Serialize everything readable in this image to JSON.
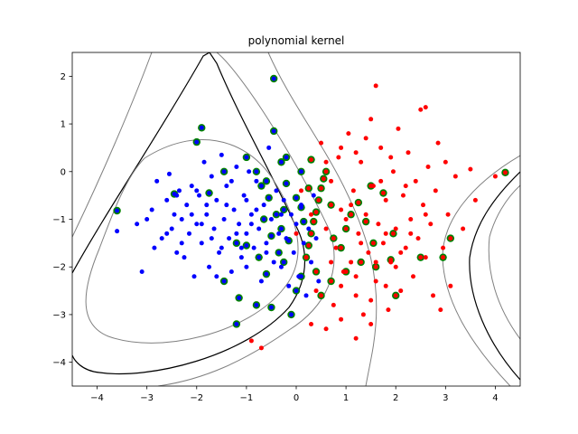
{
  "chart_data": {
    "type": "scatter",
    "title": "polynomial kernel",
    "xlabel": "",
    "ylabel": "",
    "xlim": [
      -4.5,
      4.5
    ],
    "ylim": [
      -4.5,
      2.5
    ],
    "xticks": [
      -4,
      -3,
      -2,
      -1,
      0,
      1,
      2,
      3,
      4
    ],
    "yticks": [
      -4,
      -3,
      -2,
      -1,
      0,
      1,
      2
    ],
    "grid": false,
    "colors": {
      "class_a": "#0000ff",
      "class_b": "#ff0000",
      "support_vector_ring": "#008000",
      "decision_boundary": "#000000",
      "margin": "#808080"
    },
    "series": [
      {
        "marker": "blue-dot",
        "color": "#0000ff",
        "points": [
          [
            -3.6,
            -1.25
          ],
          [
            -3.2,
            -1.1
          ],
          [
            -3.1,
            -2.1
          ],
          [
            -3.0,
            -1.0
          ],
          [
            -2.9,
            -0.8
          ],
          [
            -2.85,
            -1.6
          ],
          [
            -2.8,
            -0.2
          ],
          [
            -2.7,
            -1.4
          ],
          [
            -2.6,
            -0.6
          ],
          [
            -2.55,
            -0.05
          ],
          [
            -2.5,
            -1.2
          ],
          [
            -2.45,
            -0.9
          ],
          [
            -2.4,
            -1.7
          ],
          [
            -2.35,
            -0.4
          ],
          [
            -2.3,
            -1.0
          ],
          [
            -2.25,
            -1.8
          ],
          [
            -2.2,
            -0.7
          ],
          [
            -2.15,
            -1.3
          ],
          [
            -2.1,
            -0.3
          ],
          [
            -2.05,
            -2.2
          ],
          [
            -2.0,
            -1.1
          ],
          [
            -1.95,
            -0.5
          ],
          [
            -1.9,
            -1.5
          ],
          [
            -1.85,
            0.2
          ],
          [
            -1.8,
            -0.9
          ],
          [
            -1.75,
            -2.0
          ],
          [
            -1.7,
            -0.1
          ],
          [
            -1.65,
            -1.2
          ],
          [
            -1.6,
            -0.6
          ],
          [
            -1.55,
            -1.7
          ],
          [
            -1.5,
            0.35
          ],
          [
            -1.45,
            -1.0
          ],
          [
            -1.4,
            -0.3
          ],
          [
            -1.35,
            -1.4
          ],
          [
            -1.3,
            -2.1
          ],
          [
            -1.25,
            -0.8
          ],
          [
            -1.2,
            0.1
          ],
          [
            -1.15,
            -1.1
          ],
          [
            -1.1,
            -1.8
          ],
          [
            -1.05,
            -0.5
          ],
          [
            -1.0,
            -1.3
          ],
          [
            -0.95,
            0.0
          ],
          [
            -0.9,
            -0.9
          ],
          [
            -0.85,
            -1.6
          ],
          [
            -0.8,
            -0.2
          ],
          [
            -0.75,
            -1.2
          ],
          [
            -0.7,
            -2.3
          ],
          [
            -0.65,
            -0.7
          ],
          [
            -0.6,
            -1.5
          ],
          [
            -0.55,
            0.5
          ],
          [
            -0.5,
            -1.0
          ],
          [
            -0.45,
            -1.9
          ],
          [
            -0.4,
            -0.4
          ],
          [
            -0.35,
            -1.3
          ],
          [
            -0.3,
            -2.0
          ],
          [
            -0.25,
            -0.6
          ],
          [
            -0.2,
            -1.4
          ],
          [
            -0.15,
            -2.4
          ],
          [
            -0.1,
            -0.9
          ],
          [
            -0.05,
            -1.7
          ],
          [
            0.0,
            -1.1
          ],
          [
            0.05,
            -2.2
          ],
          [
            0.1,
            -0.7
          ],
          [
            0.15,
            -1.5
          ],
          [
            0.2,
            -2.6
          ],
          [
            0.25,
            -1.2
          ],
          [
            0.3,
            -1.9
          ],
          [
            0.35,
            -0.5
          ],
          [
            0.4,
            -1.4
          ],
          [
            0.45,
            -2.3
          ],
          [
            -2.3,
            -1.5
          ],
          [
            -2.0,
            -0.4
          ],
          [
            -1.7,
            -1.4
          ],
          [
            -1.4,
            -0.7
          ],
          [
            -1.1,
            -1.6
          ],
          [
            -0.8,
            -0.8
          ],
          [
            -1.9,
            -1.1
          ],
          [
            -1.6,
            -2.2
          ],
          [
            -1.3,
            -0.2
          ],
          [
            -1.0,
            -2.0
          ],
          [
            -2.6,
            -1.3
          ],
          [
            -2.4,
            -0.5
          ],
          [
            -1.2,
            -1.3
          ],
          [
            -0.9,
            -1.1
          ],
          [
            -1.5,
            -1.6
          ],
          [
            -1.8,
            -0.7
          ],
          [
            -2.1,
            -0.9
          ],
          [
            -1.0,
            -0.6
          ],
          [
            -0.6,
            -1.7
          ],
          [
            -0.3,
            -0.9
          ]
        ]
      },
      {
        "marker": "red-dot",
        "color": "#ff0000",
        "points": [
          [
            -0.9,
            -3.55
          ],
          [
            -0.7,
            -3.7
          ],
          [
            0.0,
            -1.3
          ],
          [
            0.1,
            -0.4
          ],
          [
            0.2,
            -1.8
          ],
          [
            0.3,
            -0.9
          ],
          [
            0.4,
            -2.5
          ],
          [
            0.5,
            0.6
          ],
          [
            0.6,
            -1.2
          ],
          [
            0.7,
            -0.2
          ],
          [
            0.75,
            -2.8
          ],
          [
            0.8,
            -1.6
          ],
          [
            0.85,
            0.3
          ],
          [
            0.9,
            -0.8
          ],
          [
            0.95,
            -2.1
          ],
          [
            1.0,
            -1.0
          ],
          [
            1.05,
            0.8
          ],
          [
            1.1,
            -1.9
          ],
          [
            1.15,
            -0.4
          ],
          [
            1.2,
            -2.6
          ],
          [
            1.25,
            -1.3
          ],
          [
            1.3,
            0.2
          ],
          [
            1.35,
            -3.0
          ],
          [
            1.4,
            -0.9
          ],
          [
            1.45,
            -1.7
          ],
          [
            1.5,
            1.1
          ],
          [
            1.55,
            -0.3
          ],
          [
            1.6,
            -2.3
          ],
          [
            1.65,
            -1.1
          ],
          [
            1.7,
            0.5
          ],
          [
            1.75,
            -1.5
          ],
          [
            1.8,
            -0.6
          ],
          [
            1.85,
            -2.9
          ],
          [
            1.9,
            -1.9
          ],
          [
            1.95,
            0.0
          ],
          [
            2.0,
            -1.2
          ],
          [
            2.05,
            0.9
          ],
          [
            2.1,
            -2.5
          ],
          [
            2.15,
            -0.5
          ],
          [
            2.2,
            -1.6
          ],
          [
            2.25,
            0.4
          ],
          [
            2.3,
            -1.0
          ],
          [
            2.35,
            -2.2
          ],
          [
            2.4,
            -0.2
          ],
          [
            2.45,
            -1.4
          ],
          [
            2.5,
            1.3
          ],
          [
            2.55,
            -0.7
          ],
          [
            2.6,
            -1.8
          ],
          [
            2.65,
            0.1
          ],
          [
            2.7,
            -1.1
          ],
          [
            2.75,
            -2.6
          ],
          [
            2.8,
            -0.4
          ],
          [
            2.85,
            0.6
          ],
          [
            2.9,
            -2.9
          ],
          [
            2.95,
            -1.6
          ],
          [
            3.0,
            0.2
          ],
          [
            3.05,
            -0.9
          ],
          [
            3.1,
            -2.4
          ],
          [
            3.2,
            -0.1
          ],
          [
            3.35,
            -1.2
          ],
          [
            3.5,
            0.05
          ],
          [
            3.6,
            -0.6
          ],
          [
            4.0,
            -0.1
          ],
          [
            0.3,
            -3.2
          ],
          [
            0.6,
            -3.3
          ],
          [
            0.9,
            -3.1
          ],
          [
            1.2,
            -3.5
          ],
          [
            1.5,
            -3.2
          ],
          [
            1.6,
            1.8
          ],
          [
            2.6,
            1.35
          ],
          [
            0.6,
            0.2
          ],
          [
            0.9,
            0.5
          ],
          [
            1.2,
            0.4
          ],
          [
            1.4,
            0.7
          ],
          [
            1.7,
            -0.2
          ],
          [
            1.9,
            0.3
          ],
          [
            2.2,
            -0.3
          ],
          [
            1.1,
            -0.7
          ],
          [
            1.3,
            -1.5
          ],
          [
            1.6,
            -1.9
          ],
          [
            1.8,
            -1.3
          ],
          [
            2.0,
            -2.0
          ],
          [
            2.3,
            -1.3
          ],
          [
            2.6,
            -0.9
          ],
          [
            0.7,
            -1.9
          ],
          [
            0.9,
            -2.4
          ],
          [
            1.2,
            -2.2
          ],
          [
            1.5,
            -2.7
          ],
          [
            1.8,
            -2.4
          ],
          [
            2.1,
            -1.7
          ]
        ]
      }
    ],
    "support_vectors": [
      [
        -3.6,
        -0.82
      ],
      [
        -2.0,
        0.62
      ],
      [
        -1.9,
        0.92
      ],
      [
        -2.45,
        -0.47
      ],
      [
        -1.45,
        -2.3
      ],
      [
        -1.15,
        -2.65
      ],
      [
        -1.2,
        -3.2
      ],
      [
        -0.8,
        -2.8
      ],
      [
        -0.5,
        -2.85
      ],
      [
        -0.6,
        -2.15
      ],
      [
        -0.75,
        -1.8
      ],
      [
        -1.0,
        -1.55
      ],
      [
        -1.2,
        -1.5
      ],
      [
        -0.45,
        0.85
      ],
      [
        -0.45,
        1.95
      ],
      [
        -1.0,
        0.3
      ],
      [
        -0.8,
        0.0
      ],
      [
        -0.7,
        -0.3
      ],
      [
        -0.55,
        -0.55
      ],
      [
        -0.4,
        -0.9
      ],
      [
        -0.3,
        -1.2
      ],
      [
        -0.15,
        -1.45
      ],
      [
        -0.1,
        -3.0
      ],
      [
        0.0,
        -2.5
      ],
      [
        0.1,
        -2.2
      ],
      [
        0.2,
        -1.8
      ],
      [
        0.25,
        -1.55
      ],
      [
        0.3,
        -1.3
      ],
      [
        0.35,
        -1.05
      ],
      [
        0.4,
        -0.85
      ],
      [
        0.45,
        -0.6
      ],
      [
        0.5,
        -0.35
      ],
      [
        0.55,
        -0.15
      ],
      [
        0.6,
        0.0
      ],
      [
        0.3,
        0.25
      ],
      [
        -0.3,
        0.2
      ],
      [
        -0.2,
        -0.25
      ],
      [
        0.0,
        -0.55
      ],
      [
        0.1,
        -0.75
      ],
      [
        0.7,
        -0.7
      ],
      [
        0.75,
        -1.4
      ],
      [
        0.9,
        -1.6
      ],
      [
        1.0,
        -1.2
      ],
      [
        1.1,
        -0.9
      ],
      [
        1.25,
        -0.65
      ],
      [
        1.4,
        -1.05
      ],
      [
        1.5,
        -0.3
      ],
      [
        1.55,
        -1.5
      ],
      [
        1.6,
        -2.0
      ],
      [
        1.3,
        -1.9
      ],
      [
        1.0,
        -2.1
      ],
      [
        0.7,
        -2.3
      ],
      [
        0.5,
        -2.6
      ],
      [
        0.4,
        -2.1
      ],
      [
        -0.25,
        -1.9
      ],
      [
        -0.35,
        -1.7
      ],
      [
        -0.5,
        -1.35
      ],
      [
        -0.65,
        -1.0
      ],
      [
        -0.6,
        -0.2
      ],
      [
        -0.2,
        0.3
      ],
      [
        0.1,
        0.0
      ],
      [
        0.25,
        -0.35
      ],
      [
        1.75,
        -0.45
      ],
      [
        1.95,
        -1.3
      ],
      [
        1.9,
        -1.85
      ],
      [
        2.0,
        -2.6
      ],
      [
        2.5,
        -1.8
      ],
      [
        2.95,
        -1.8
      ],
      [
        3.1,
        -1.4
      ],
      [
        4.2,
        -0.02
      ],
      [
        -1.45,
        0.0
      ],
      [
        -1.75,
        -0.45
      ],
      [
        -0.25,
        -0.8
      ],
      [
        0.15,
        -1.05
      ]
    ]
  }
}
